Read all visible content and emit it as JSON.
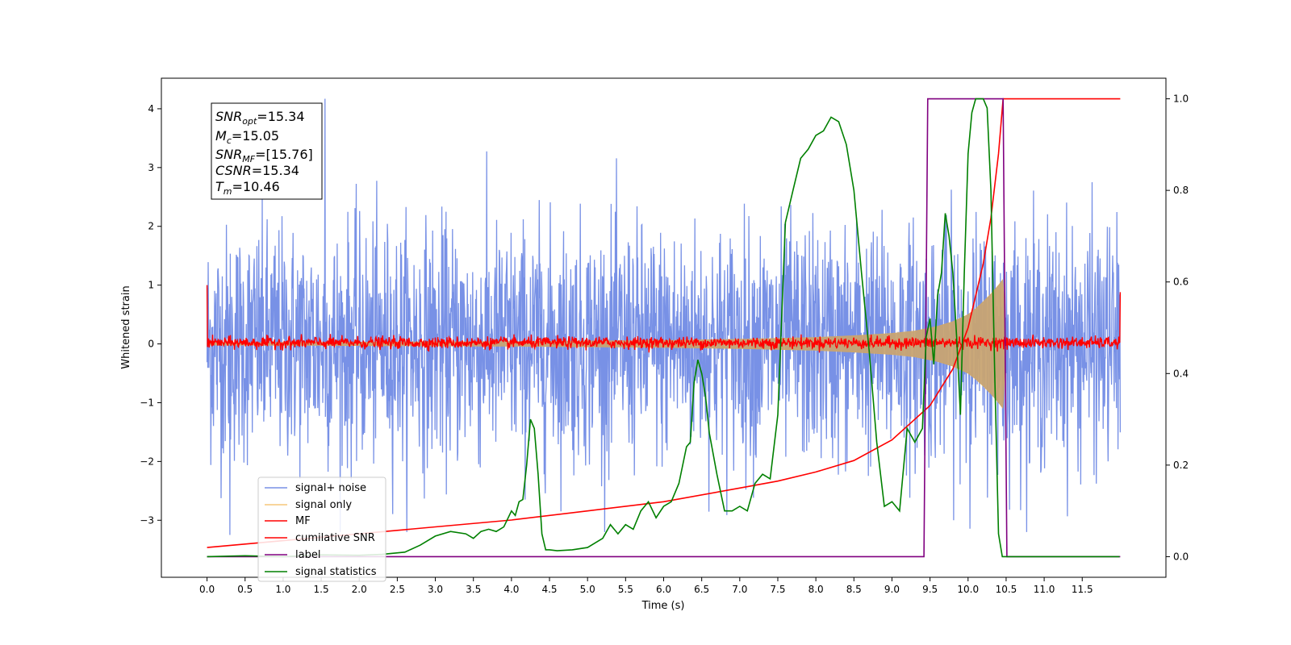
{
  "chart_data": {
    "type": "line",
    "xlabel": "Time (s)",
    "ylabel": "Whitened strain",
    "xlim": [
      -0.6,
      12.6
    ],
    "ylim_left": [
      -3.97,
      4.52
    ],
    "ylim_right": [
      -0.045,
      1.045
    ],
    "x_ticks": [
      0.0,
      0.5,
      1.0,
      1.5,
      2.0,
      2.5,
      3.0,
      3.5,
      4.0,
      4.5,
      5.0,
      5.5,
      6.0,
      6.5,
      7.0,
      7.5,
      8.0,
      8.5,
      9.0,
      9.5,
      10.0,
      10.5,
      11.0,
      11.5
    ],
    "x_tick_labels": [
      "0.0",
      "0.5",
      "1.0",
      "1.5",
      "2.0",
      "2.5",
      "3.0",
      "3.5",
      "4.0",
      "4.5",
      "5.0",
      "5.5",
      "6.0",
      "6.5",
      "7.0",
      "7.5",
      "8.0",
      "8.5",
      "9.0",
      "9.5",
      "10.0",
      "10.5",
      "11.0",
      "11.5"
    ],
    "y_ticks_left": [
      -3,
      -2,
      -1,
      0,
      1,
      2,
      3,
      4
    ],
    "y_tick_labels_left": [
      "−3",
      "−2",
      "−1",
      "0",
      "1",
      "2",
      "3",
      "4"
    ],
    "y_ticks_right": [
      0.0,
      0.2,
      0.4,
      0.6,
      0.8,
      1.0
    ],
    "y_tick_labels_right": [
      "0.0",
      "0.2",
      "0.4",
      "0.6",
      "0.8",
      "1.0"
    ],
    "grid": false,
    "legend_position": "lower-left",
    "annotation": {
      "lines": [
        {
          "base": "SNR",
          "sub": "opt",
          "value": "=15.34"
        },
        {
          "base": "M",
          "sub": "c",
          "value": "=15.05"
        },
        {
          "base": "SNR",
          "sub": "MF",
          "value": "=[15.76]"
        },
        {
          "base": "CSNR",
          "sub": "",
          "value": "=15.34"
        },
        {
          "base": "T",
          "sub": "m",
          "value": "=10.46"
        }
      ]
    },
    "series": [
      {
        "name": "signal+ noise",
        "axis": "left",
        "color": "#7891e6",
        "kind": "noise_band",
        "x_range": [
          0.0,
          12.0
        ],
        "typical_amplitude": 1.0,
        "peak_values": [
          4.17,
          -3.25
        ]
      },
      {
        "name": "signal only",
        "axis": "left",
        "color": "#f5c77a",
        "kind": "chirp_envelope",
        "x": [
          0.0,
          2.0,
          4.0,
          6.0,
          7.0,
          8.0,
          8.5,
          9.0,
          9.3,
          9.6,
          9.8,
          10.0,
          10.1,
          10.2,
          10.3,
          10.4,
          10.46,
          10.5
        ],
        "amplitude": [
          0.02,
          0.03,
          0.04,
          0.06,
          0.08,
          0.11,
          0.14,
          0.18,
          0.22,
          0.3,
          0.38,
          0.5,
          0.6,
          0.72,
          0.85,
          1.0,
          1.1,
          0.0
        ]
      },
      {
        "name": "MF",
        "axis": "left",
        "color": "#ff0000",
        "kind": "noisy_flat",
        "x_range": [
          0.0,
          12.0
        ],
        "baseline": 0.02,
        "noise_amplitude": 0.1,
        "start_value": 1.0,
        "end_value": 0.88
      },
      {
        "name": "cumilative SNR",
        "axis": "right",
        "color": "#ff0000",
        "x": [
          0.0,
          1.0,
          2.0,
          3.0,
          4.0,
          5.0,
          6.0,
          7.0,
          7.5,
          8.0,
          8.5,
          9.0,
          9.5,
          9.8,
          10.0,
          10.2,
          10.3,
          10.4,
          10.46,
          10.5,
          12.0
        ],
        "values": [
          0.02,
          0.035,
          0.05,
          0.065,
          0.08,
          0.1,
          0.12,
          0.15,
          0.165,
          0.185,
          0.21,
          0.255,
          0.33,
          0.41,
          0.5,
          0.64,
          0.74,
          0.88,
          1.0,
          1.0,
          1.0
        ]
      },
      {
        "name": "label",
        "axis": "right",
        "color": "#800080",
        "x": [
          0.0,
          9.42,
          9.47,
          10.46,
          10.51,
          12.0
        ],
        "values": [
          0.0,
          0.0,
          1.0,
          1.0,
          0.0,
          0.0
        ]
      },
      {
        "name": "signal statistics",
        "axis": "right",
        "color": "#008000",
        "x": [
          0.0,
          0.5,
          1.0,
          1.5,
          2.0,
          2.3,
          2.6,
          2.8,
          3.0,
          3.2,
          3.4,
          3.5,
          3.6,
          3.7,
          3.8,
          3.9,
          4.0,
          4.05,
          4.1,
          4.15,
          4.2,
          4.25,
          4.3,
          4.35,
          4.4,
          4.45,
          4.5,
          4.6,
          4.8,
          5.0,
          5.2,
          5.3,
          5.4,
          5.5,
          5.6,
          5.7,
          5.8,
          5.9,
          6.0,
          6.1,
          6.2,
          6.3,
          6.35,
          6.4,
          6.45,
          6.5,
          6.55,
          6.6,
          6.7,
          6.8,
          6.9,
          7.0,
          7.1,
          7.2,
          7.3,
          7.4,
          7.5,
          7.6,
          7.7,
          7.8,
          7.9,
          8.0,
          8.1,
          8.2,
          8.3,
          8.4,
          8.5,
          8.6,
          8.7,
          8.8,
          8.9,
          9.0,
          9.1,
          9.2,
          9.3,
          9.4,
          9.45,
          9.5,
          9.55,
          9.6,
          9.65,
          9.7,
          9.75,
          9.8,
          9.85,
          9.9,
          9.95,
          10.0,
          10.05,
          10.1,
          10.15,
          10.2,
          10.25,
          10.3,
          10.35,
          10.4,
          10.45,
          10.5,
          10.55,
          10.6,
          11.0,
          11.5,
          11.99
        ],
        "values": [
          0.0,
          0.002,
          0.0,
          0.004,
          0.003,
          0.005,
          0.01,
          0.025,
          0.045,
          0.055,
          0.05,
          0.04,
          0.055,
          0.06,
          0.055,
          0.065,
          0.1,
          0.09,
          0.12,
          0.125,
          0.2,
          0.3,
          0.28,
          0.18,
          0.05,
          0.015,
          0.015,
          0.013,
          0.015,
          0.02,
          0.04,
          0.07,
          0.05,
          0.07,
          0.06,
          0.1,
          0.12,
          0.085,
          0.11,
          0.12,
          0.16,
          0.24,
          0.25,
          0.38,
          0.43,
          0.4,
          0.35,
          0.27,
          0.18,
          0.1,
          0.1,
          0.11,
          0.1,
          0.16,
          0.18,
          0.17,
          0.31,
          0.73,
          0.8,
          0.87,
          0.89,
          0.92,
          0.93,
          0.96,
          0.95,
          0.9,
          0.8,
          0.62,
          0.45,
          0.25,
          0.11,
          0.12,
          0.1,
          0.28,
          0.25,
          0.28,
          0.48,
          0.52,
          0.42,
          0.57,
          0.62,
          0.75,
          0.7,
          0.62,
          0.48,
          0.31,
          0.62,
          0.88,
          0.97,
          1.0,
          1.0,
          1.0,
          0.98,
          0.8,
          0.4,
          0.05,
          0.0,
          0.0,
          0.0,
          0.0,
          0.0,
          0.0,
          0.0
        ]
      }
    ]
  }
}
